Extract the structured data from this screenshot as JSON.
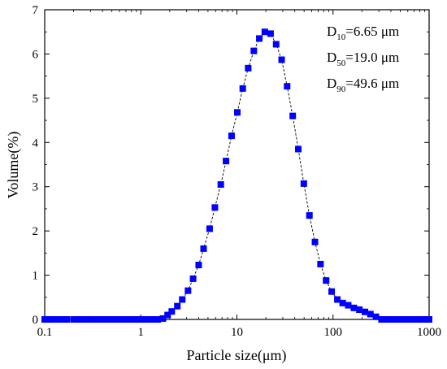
{
  "chart_data": {
    "type": "scatter",
    "xlabel": "Particle size(μm)",
    "ylabel": "Volume(%)",
    "xscale": "log",
    "xlim": [
      0.1,
      1000
    ],
    "ylim": [
      0,
      7
    ],
    "xticks": [
      "0.1",
      "1",
      "10",
      "100",
      "1000"
    ],
    "yticks": [
      "0",
      "1",
      "2",
      "3",
      "4",
      "5",
      "6",
      "7"
    ],
    "marker": "square",
    "connecting_line": "dashed",
    "series": [
      {
        "color": "#0000ff",
        "x": [
          0.1,
          0.115,
          0.13,
          0.15,
          0.17,
          0.2,
          0.23,
          0.26,
          0.3,
          0.35,
          0.4,
          0.46,
          0.52,
          0.6,
          0.7,
          0.8,
          0.9,
          1.0,
          1.15,
          1.3,
          1.5,
          1.7,
          1.9,
          2.1,
          2.4,
          2.7,
          3.1,
          3.5,
          4.0,
          4.5,
          5.2,
          5.9,
          6.8,
          7.7,
          8.8,
          10.1,
          11.5,
          13.1,
          15.0,
          17.1,
          19.5,
          22.4,
          25.6,
          29.2,
          33.3,
          38.1,
          43.5,
          49.7,
          56.8,
          64.9,
          74.1,
          84.7,
          96.8,
          111,
          126,
          144,
          165,
          188,
          215,
          245,
          280,
          320,
          370,
          420,
          480,
          550,
          630,
          720,
          820,
          940,
          1000
        ],
        "y": [
          0.0,
          0.0,
          0.0,
          0.0,
          0.0,
          0.0,
          0.0,
          0.0,
          0.0,
          0.0,
          0.0,
          0.0,
          0.0,
          0.0,
          0.0,
          0.0,
          0.0,
          0.0,
          0.0,
          0.0,
          0.0,
          0.02,
          0.1,
          0.18,
          0.3,
          0.45,
          0.65,
          0.92,
          1.23,
          1.6,
          2.05,
          2.53,
          3.05,
          3.58,
          4.15,
          4.68,
          5.22,
          5.68,
          6.07,
          6.35,
          6.5,
          6.46,
          6.22,
          5.87,
          5.27,
          4.6,
          3.85,
          3.07,
          2.35,
          1.75,
          1.25,
          0.88,
          0.63,
          0.45,
          0.37,
          0.32,
          0.26,
          0.22,
          0.17,
          0.12,
          0.06,
          0.0,
          0.0,
          0.0,
          0.0,
          0.0,
          0.0,
          0.0,
          0.0,
          0.0,
          0.0
        ]
      }
    ],
    "annotations": [
      {
        "main": "D",
        "sub": "10",
        "rest": "=6.65 μm"
      },
      {
        "main": "D",
        "sub": "50",
        "rest": "=19.0 μm"
      },
      {
        "main": "D",
        "sub": "90",
        "rest": "=49.6 μm"
      }
    ]
  }
}
